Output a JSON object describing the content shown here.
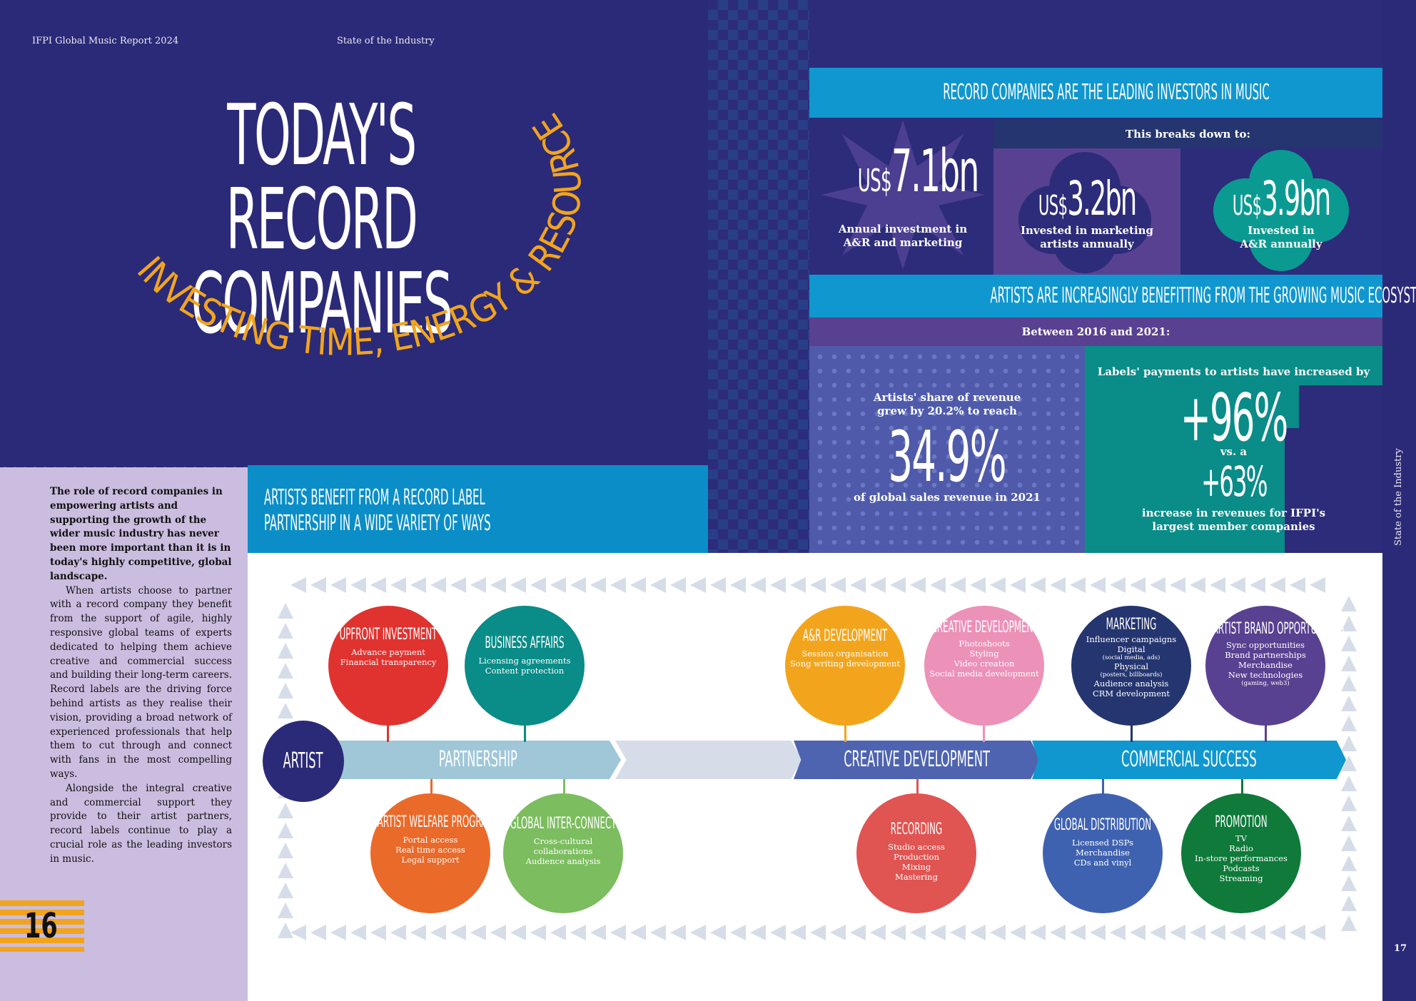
{
  "header": {
    "report": "IFPI Global Music Report 2024",
    "section": "State of the Industry"
  },
  "left": {
    "title_line1": "TODAY'S RECORD",
    "title_line2": "COMPANIES",
    "subtitle": "INVESTING TIME, ENERGY & RESOURCES IN MUSIC",
    "intro_lead": "The role of record companies in empowering artists and supporting the growth of the wider music industry has never been more important than it is in today's highly competitive, global landscape.",
    "intro_p2": "When artists choose to partner with a record company they benefit from the support of agile, highly responsive global teams of experts dedicated to helping them achieve creative and commercial success and building their long-term careers. Record labels are the driving force behind artists as they realise their vision, providing a broad network of experienced professionals that help them to cut through and connect with fans in the most compelling ways.",
    "intro_p3": "Alongside the integral creative and commercial support they provide to their artist partners, record labels continue to play a crucial role as the leading investors in music.",
    "page_number": "16",
    "benefit_title_line1": "ARTISTS BENEFIT FROM A RECORD LABEL",
    "benefit_title_line2": "PARTNERSHIP IN A WIDE VARIETY OF WAYS"
  },
  "investors": {
    "banner": "RECORD COMPANIES ARE THE LEADING INVESTORS IN MUSIC",
    "breaks_down": "This breaks down to:",
    "total": {
      "prefix": "US$",
      "value": "7.1bn",
      "label_line1": "Annual investment in",
      "label_line2": "A&R and marketing"
    },
    "marketing": {
      "prefix": "US$",
      "value": "3.2bn",
      "label_line1": "Invested in marketing",
      "label_line2": "artists annually"
    },
    "ar": {
      "prefix": "US$",
      "value": "3.9bn",
      "label_line1": "Invested in",
      "label_line2": "A&R annually"
    }
  },
  "ecosystem": {
    "banner": "ARTISTS ARE INCREASINGLY BENEFITTING FROM THE GROWING MUSIC ECOSYSTEM",
    "between": "Between 2016 and 2021:",
    "share_line1": "Artists' share of revenue",
    "share_line2": "grew by 20.2% to reach",
    "share_value": "34.9%",
    "share_caption": "of global sales revenue in 2021",
    "payments_heading": "Labels' payments to artists have increased by",
    "payments_value": "+96%",
    "vs": "vs. a",
    "revenue_value": "+63%",
    "revenue_line1": "increase in revenues for IFPI's",
    "revenue_line2": "largest member companies"
  },
  "flow": {
    "artist": "ARTIST",
    "stage1": "PARTNERSHIP",
    "stage2": "CREATIVE DEVELOPMENT",
    "stage3": "COMMERCIAL SUCCESS",
    "circles": {
      "upfront": {
        "title": "UPFRONT INVESTMENT",
        "items": [
          "Advance payment",
          "Financial transparency"
        ]
      },
      "business": {
        "title": "BUSINESS AFFAIRS",
        "items": [
          "Licensing agreements",
          "Content protection"
        ]
      },
      "welfare": {
        "title": "ARTIST WELFARE PROGRAMME",
        "items": [
          "Portal access",
          "Real time access",
          "Legal support"
        ]
      },
      "global_ic": {
        "title": "GLOBAL INTER-CONNECTIVITY",
        "items": [
          "Cross-cultural collaborations",
          "Audience analysis"
        ]
      },
      "ar_dev": {
        "title": "A&R DEVELOPMENT",
        "items": [
          "Session organisation",
          "Song writing development"
        ]
      },
      "creative_services": {
        "title": "CREATIVE DEVELOPMENT SERVICES",
        "items": [
          "Photoshoots",
          "Styling",
          "Video creation",
          "Social media development"
        ]
      },
      "recording": {
        "title": "RECORDING",
        "items": [
          "Studio access",
          "Production",
          "Mixing",
          "Mastering"
        ]
      },
      "marketing": {
        "title": "MARKETING",
        "items": [
          "Influencer campaigns",
          "Digital",
          "(social media, ads)",
          "Physical",
          "(posters, billboards)",
          "Audience analysis",
          "CRM development"
        ]
      },
      "brand": {
        "title": "ARTIST BRAND OPPORTUNITIES",
        "items": [
          "Sync opportunities",
          "Brand partnerships",
          "Merchandise",
          "New technologies",
          "(gaming, web3)"
        ]
      },
      "distribution": {
        "title": "GLOBAL DISTRIBUTION",
        "items": [
          "Licensed DSPs",
          "Merchandise",
          "CDs and vinyl"
        ]
      },
      "promotion": {
        "title": "PROMOTION",
        "items": [
          "TV",
          "Radio",
          "In-store performances",
          "Podcasts",
          "Streaming"
        ]
      }
    }
  },
  "right_margin": {
    "section": "State of the Industry",
    "page_number": "17"
  },
  "colors": {
    "navy": "#2b2a78",
    "blue_banner": "#1097cf",
    "purple": "#594191",
    "teal": "#0a8c88",
    "orange_accent": "#f2a51c",
    "lavender": "#cbbde0"
  }
}
